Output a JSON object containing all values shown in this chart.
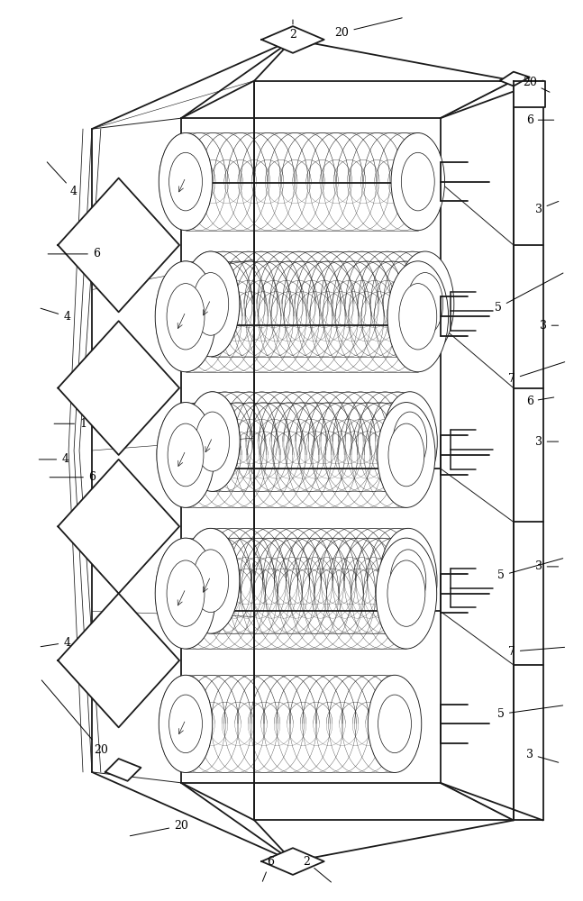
{
  "bg_color": "#ffffff",
  "line_color": "#1a1a1a",
  "lw_main": 1.3,
  "lw_thin": 0.7,
  "lw_coil": 0.65,
  "fig_width": 6.47,
  "fig_height": 10.0
}
